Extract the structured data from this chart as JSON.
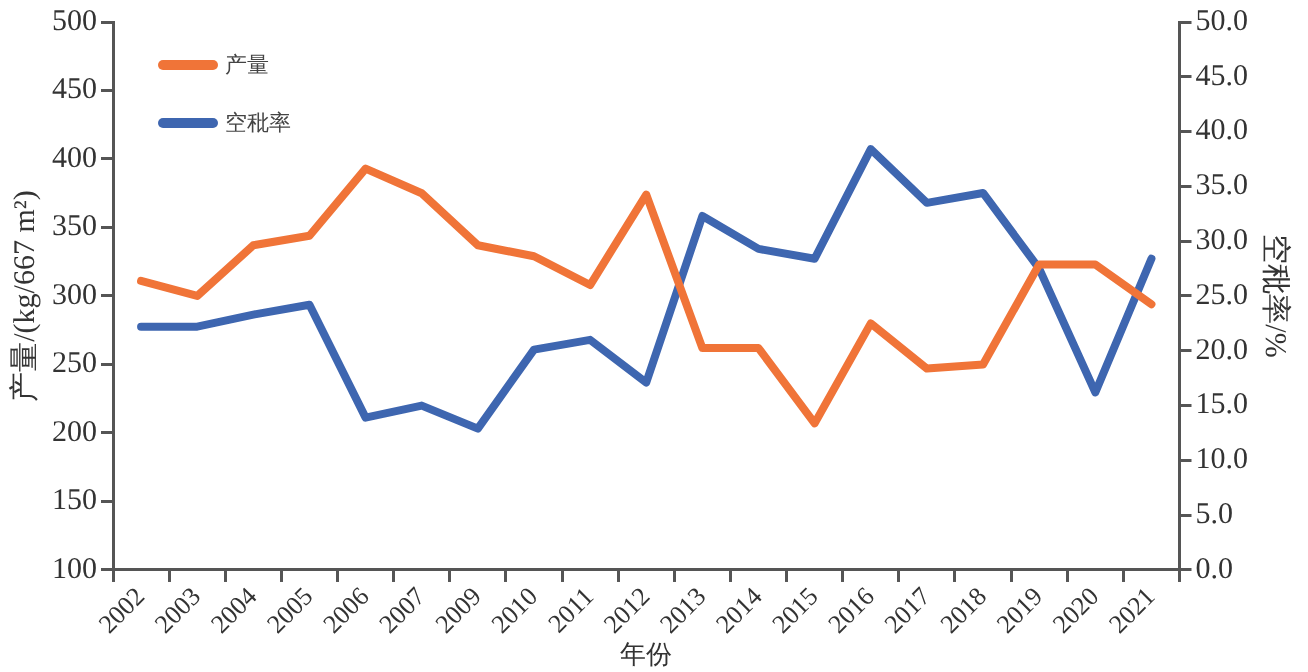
{
  "chart_data": {
    "type": "line",
    "xlabel": "年份",
    "ylabel": "产量/(kg/667 m²)",
    "y2label": "空秕率/%",
    "categories": [
      "2002",
      "2003",
      "2004",
      "2005",
      "2006",
      "2007",
      "2009",
      "2010",
      "2011",
      "2012",
      "2013",
      "2014",
      "2015",
      "2016",
      "2017",
      "2018",
      "2019",
      "2020",
      "2021"
    ],
    "series": [
      {
        "name": "产量",
        "color": "#f07438",
        "values": [
          311,
          300,
          337,
          344,
          393,
          375,
          337,
          329,
          308,
          374,
          262,
          262,
          207,
          280,
          247,
          250,
          323,
          323,
          294
        ]
      },
      {
        "name": "空秕率",
        "color": "#3e66b0",
        "axis": "y2",
        "values": [
          22.2,
          22.2,
          23.3,
          24.2,
          13.9,
          15.0,
          12.9,
          20.1,
          21.0,
          17.1,
          32.3,
          29.3,
          28.4,
          38.4,
          33.5,
          34.4,
          27.5,
          16.2,
          28.4
        ]
      }
    ],
    "ylim": [
      100,
      500
    ],
    "yticks": [
      100,
      150,
      200,
      250,
      300,
      350,
      400,
      450,
      500
    ],
    "y2lim": [
      0,
      50
    ],
    "y2ticks": [
      {
        "value": 0,
        "label": "0.0"
      },
      {
        "value": 5,
        "label": "5.0"
      },
      {
        "value": 10,
        "label": "10.0"
      },
      {
        "value": 15,
        "label": "15.0"
      },
      {
        "value": 20,
        "label": "20.0"
      },
      {
        "value": 25,
        "label": "25.0"
      },
      {
        "value": 30,
        "label": "30.0"
      },
      {
        "value": 35,
        "label": "35.0"
      },
      {
        "value": 40,
        "label": "40.0"
      },
      {
        "value": 45,
        "label": "45.0"
      },
      {
        "value": 50,
        "label": "50.0"
      }
    ],
    "grid": false,
    "legend": "top left",
    "marker": "none",
    "line_style": "solid"
  }
}
